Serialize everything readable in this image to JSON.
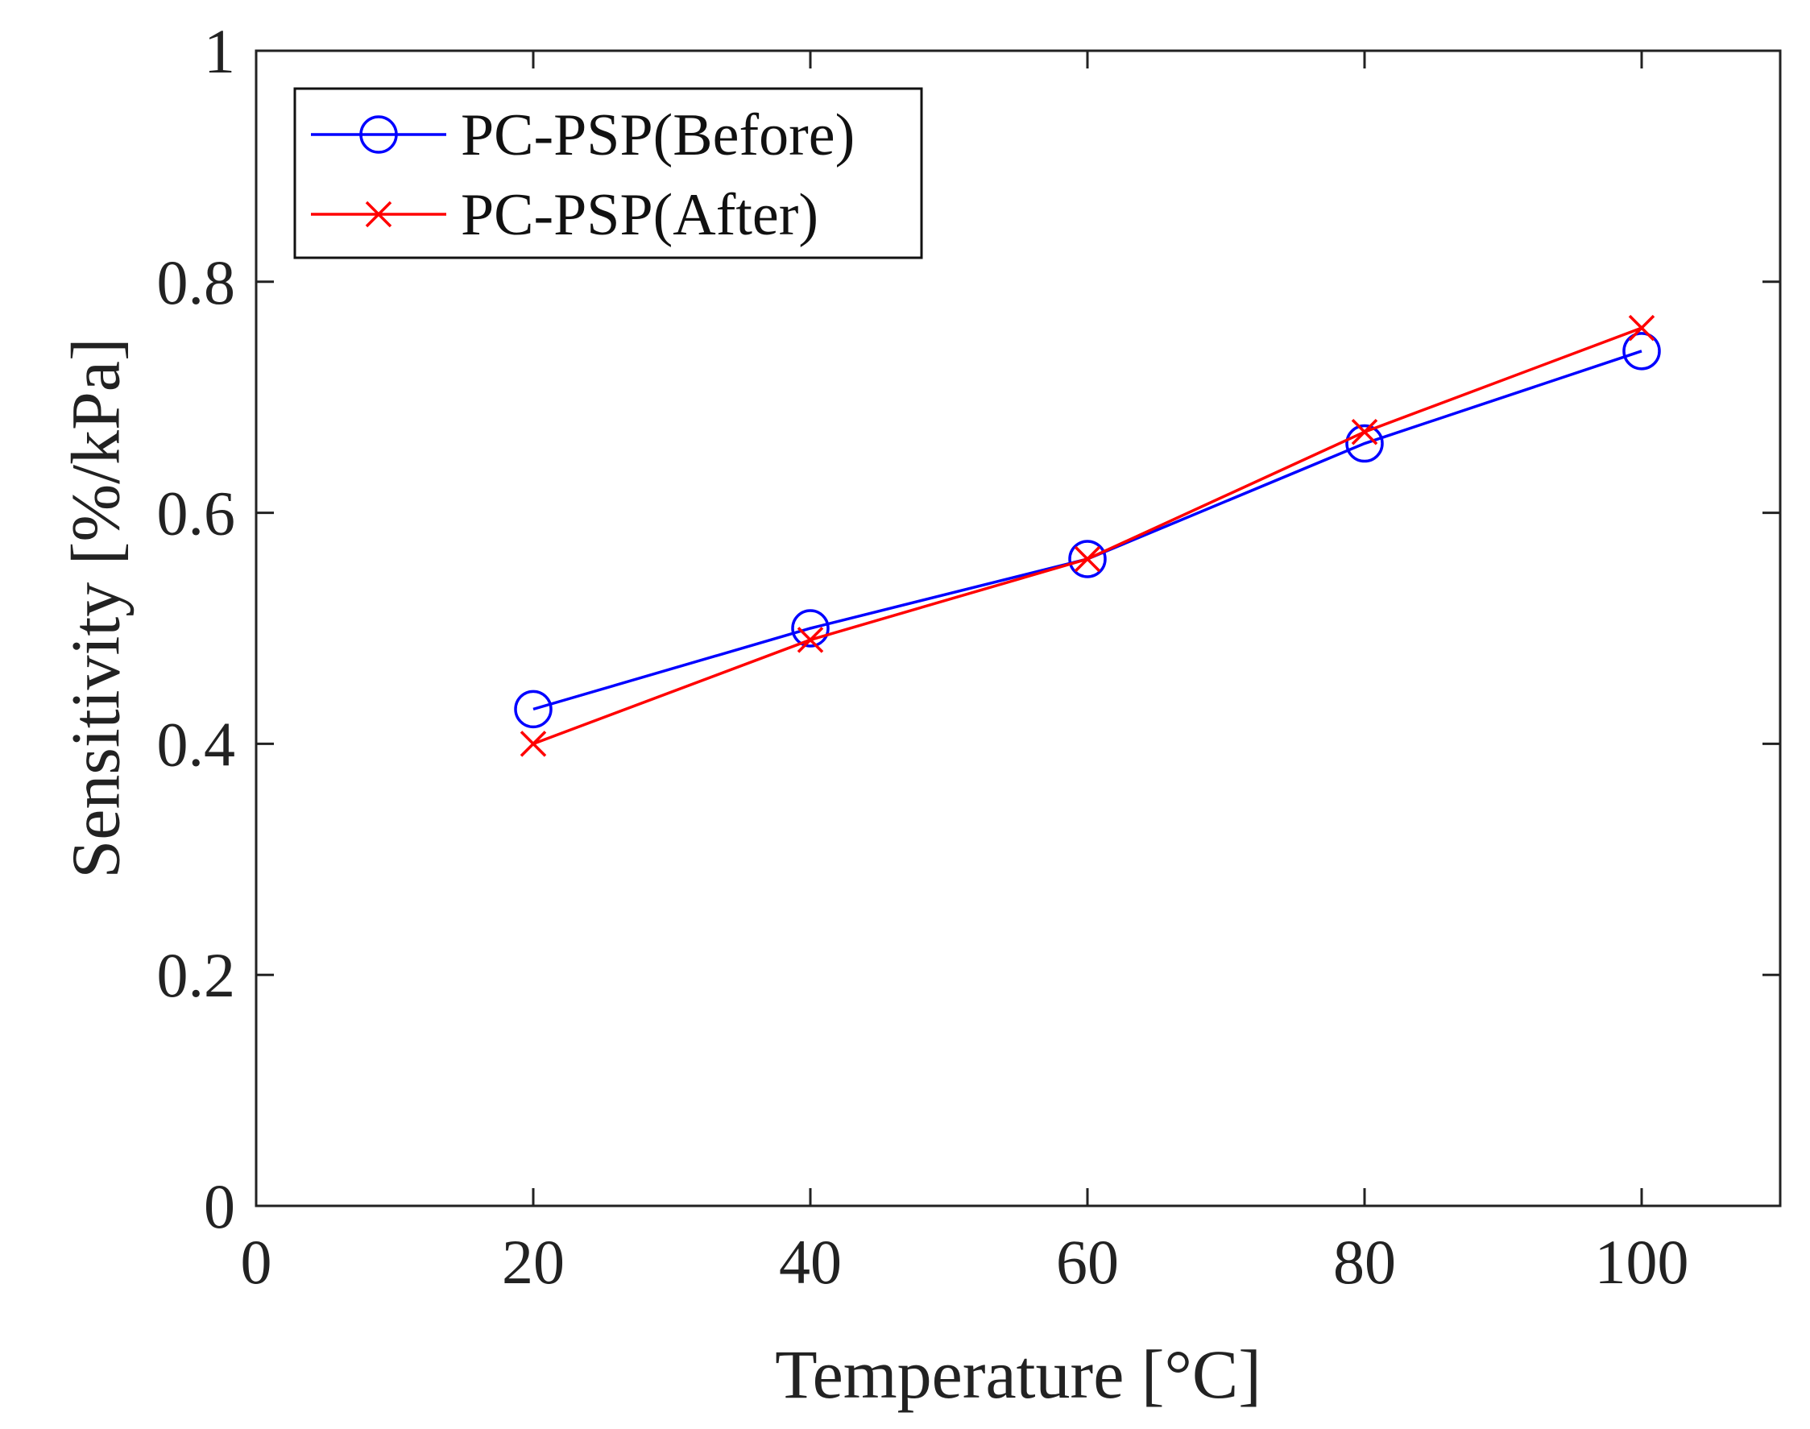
{
  "chart_data": {
    "type": "line",
    "title": "",
    "xlabel": "Temperature [°C]",
    "ylabel": "Sensitivity [%/kPa]",
    "xlim": [
      0,
      110
    ],
    "ylim": [
      0,
      1
    ],
    "xticks": [
      0,
      20,
      40,
      60,
      80,
      100
    ],
    "yticks": [
      0,
      0.2,
      0.4,
      0.6,
      0.8,
      1
    ],
    "xtick_labels": [
      "0",
      "20",
      "40",
      "60",
      "80",
      "100"
    ],
    "ytick_labels": [
      "0",
      "0.2",
      "0.4",
      "0.6",
      "0.8",
      "1"
    ],
    "grid": false,
    "legend_position": "top-left",
    "series": [
      {
        "name": "PC-PSP(Before)",
        "color": "#0000ff",
        "marker": "circle",
        "x": [
          20,
          40,
          60,
          80,
          100
        ],
        "y": [
          0.43,
          0.5,
          0.56,
          0.66,
          0.74
        ]
      },
      {
        "name": "PC-PSP(After)",
        "color": "#ff0000",
        "marker": "x",
        "x": [
          20,
          40,
          60,
          80,
          100
        ],
        "y": [
          0.4,
          0.49,
          0.56,
          0.67,
          0.76
        ]
      }
    ]
  }
}
